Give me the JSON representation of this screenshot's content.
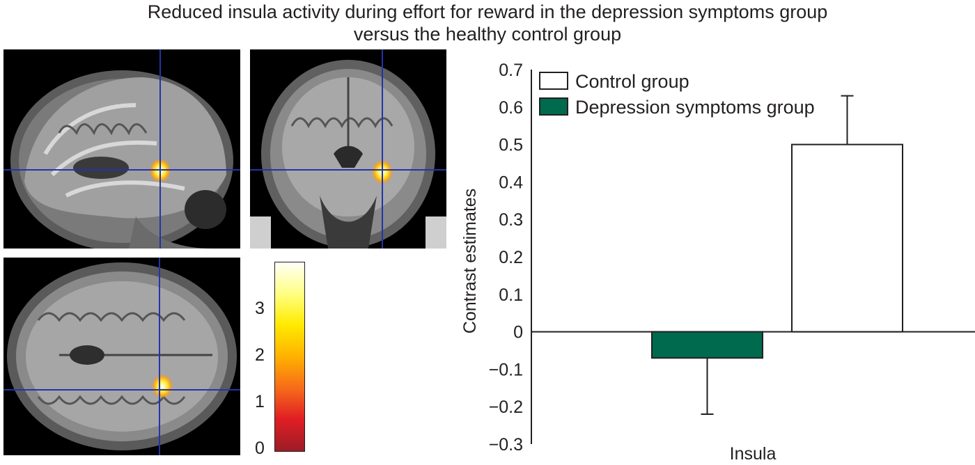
{
  "title_line1": "Reduced insula activity during effort for reward in the depression symptoms group",
  "title_line2": "versus the healthy control group",
  "brain_views": [
    {
      "name": "sagittal-slice"
    },
    {
      "name": "coronal-slice"
    },
    {
      "name": "axial-slice"
    }
  ],
  "colorbar": {
    "ticks": [
      "3",
      "2",
      "1",
      "0"
    ],
    "colors": [
      "#fffff8",
      "#ffff80",
      "#ffea00",
      "#ffb100",
      "#f66a1a",
      "#e01e24",
      "#9c1c26"
    ]
  },
  "crosshair_color": "#2433a8",
  "chart_data": {
    "type": "bar",
    "categories": [
      "Insula"
    ],
    "series": [
      {
        "name": "Depression symptoms group",
        "values": [
          -0.07
        ],
        "error": [
          0.15
        ],
        "color": "#006a4e"
      },
      {
        "name": "Control group",
        "values": [
          0.5
        ],
        "error": [
          0.13
        ],
        "color": "#ffffff"
      }
    ],
    "xlabel": "Insula",
    "ylabel": "Contrast estimates",
    "ylim": [
      -0.3,
      0.7
    ],
    "yticks": [
      "0.7",
      "0.6",
      "0.5",
      "0.4",
      "0.3",
      "0.2",
      "0.1",
      "0",
      "−0.1",
      "−0.2",
      "−0.3"
    ],
    "legend": [
      {
        "label": "Control group",
        "color": "#ffffff"
      },
      {
        "label": "Depression symptoms group",
        "color": "#006a4e"
      }
    ],
    "legend_position": "top-left",
    "grid": false
  }
}
